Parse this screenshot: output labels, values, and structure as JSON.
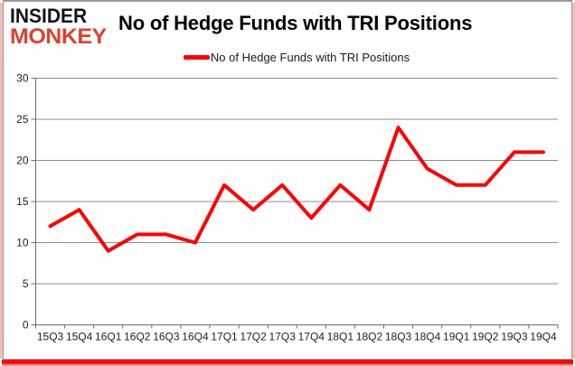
{
  "logo": {
    "line1": "INSIDER",
    "line2": "MONKEY"
  },
  "header": {
    "title": "No of Hedge Funds with TRI Positions"
  },
  "legend": {
    "label": "No of Hedge Funds with TRI Positions"
  },
  "colors": {
    "series_line": "#ff0000",
    "logo_black": "#141414",
    "logo_red": "#d9432f",
    "gridline": "#8c8c8c",
    "axis_line": "#6b6b6b",
    "tick_text": "#1f1f1f",
    "bottom_accent": "#ff0000"
  },
  "chart_data": {
    "type": "line",
    "title": "No of Hedge Funds with TRI Positions",
    "categories": [
      "15Q3",
      "15Q4",
      "16Q1",
      "16Q2",
      "16Q3",
      "16Q4",
      "17Q1",
      "17Q2",
      "17Q3",
      "17Q4",
      "18Q1",
      "18Q2",
      "18Q3",
      "18Q4",
      "19Q1",
      "19Q2",
      "19Q3",
      "19Q4"
    ],
    "series": [
      {
        "name": "No of Hedge Funds with TRI Positions",
        "color": "#ff0000",
        "values": [
          12,
          14,
          9,
          11,
          11,
          10,
          17,
          14,
          17,
          13,
          17,
          14,
          24,
          19,
          17,
          17,
          21,
          21
        ]
      }
    ],
    "xlabel": "",
    "ylabel": "",
    "ylim": [
      0,
      30
    ],
    "ytick_step": 5,
    "grid": true,
    "legend_position": "top-center"
  }
}
